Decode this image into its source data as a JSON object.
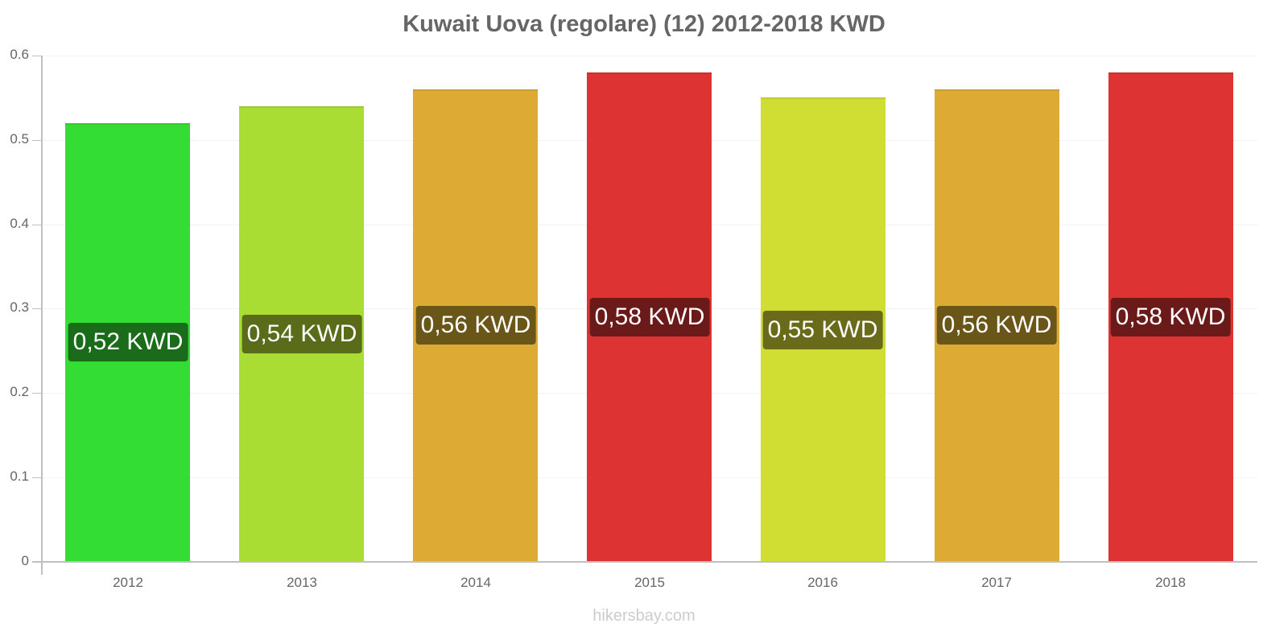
{
  "chart_data": {
    "type": "bar",
    "title": "Kuwait Uova (regolare) (12) 2012-2018 KWD",
    "xlabel": "",
    "ylabel": "",
    "categories": [
      "2012",
      "2013",
      "2014",
      "2015",
      "2016",
      "2017",
      "2018"
    ],
    "values": [
      0.52,
      0.54,
      0.56,
      0.58,
      0.55,
      0.56,
      0.58
    ],
    "data_labels": [
      "0,52 KWD",
      "0,54 KWD",
      "0,56 KWD",
      "0,58 KWD",
      "0,55 KWD",
      "0,56 KWD",
      "0,58 KWD"
    ],
    "bar_colors": [
      "#33dd33",
      "#aadd33",
      "#ddaa33",
      "#dd3333",
      "#d0dd33",
      "#ddaa33",
      "#dd3333"
    ],
    "label_colors": [
      "#1a6b1a",
      "#5a6b1a",
      "#6b561a",
      "#6b1a1a",
      "#696b1a",
      "#6b561a",
      "#6b1a1a"
    ],
    "ylim": [
      0,
      0.6
    ],
    "yticks": [
      "0",
      "0.1",
      "0.2",
      "0.3",
      "0.4",
      "0.5",
      "0.6"
    ],
    "grid": true,
    "legend": null
  },
  "watermark": "hikersbay.com"
}
